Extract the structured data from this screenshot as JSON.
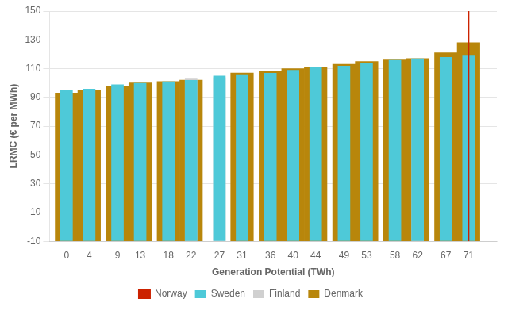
{
  "chart_data": {
    "type": "bar",
    "xlabel": "Generation Potential (TWh)",
    "ylabel": "LRMC (€ per MWh)",
    "x": [
      0,
      4,
      9,
      13,
      18,
      22,
      27,
      31,
      36,
      40,
      44,
      49,
      53,
      58,
      62,
      67,
      71
    ],
    "series": [
      {
        "name": "Norway",
        "type": "line",
        "color": "#CC2200",
        "x": [
          71,
          71
        ],
        "values": [
          -10,
          150
        ]
      },
      {
        "name": "Sweden",
        "color": "#4EC9D8",
        "values": [
          95,
          96,
          99,
          100,
          101,
          102,
          105,
          106,
          107,
          109,
          111,
          112,
          114,
          116,
          117,
          118,
          119
        ]
      },
      {
        "name": "Finland",
        "color": "#D0D0D0",
        "values": [
          null,
          null,
          null,
          null,
          null,
          103,
          104,
          null,
          null,
          null,
          null,
          null,
          null,
          null,
          117,
          null,
          null
        ]
      },
      {
        "name": "Denmark",
        "color": "#B8860B",
        "values": [
          93,
          95,
          98,
          100,
          101,
          102,
          null,
          107,
          108,
          110,
          111,
          113,
          115,
          116,
          117,
          121,
          128
        ]
      }
    ],
    "xlim": [
      -3,
      76
    ],
    "xticks": [
      0,
      4,
      9,
      13,
      18,
      22,
      27,
      31,
      36,
      40,
      44,
      49,
      53,
      58,
      62,
      67,
      71
    ],
    "ylim": [
      -10,
      150
    ],
    "yticks": [
      -10,
      10,
      30,
      50,
      70,
      90,
      110,
      130,
      150
    ],
    "grid": "y",
    "legend": "bottom"
  }
}
